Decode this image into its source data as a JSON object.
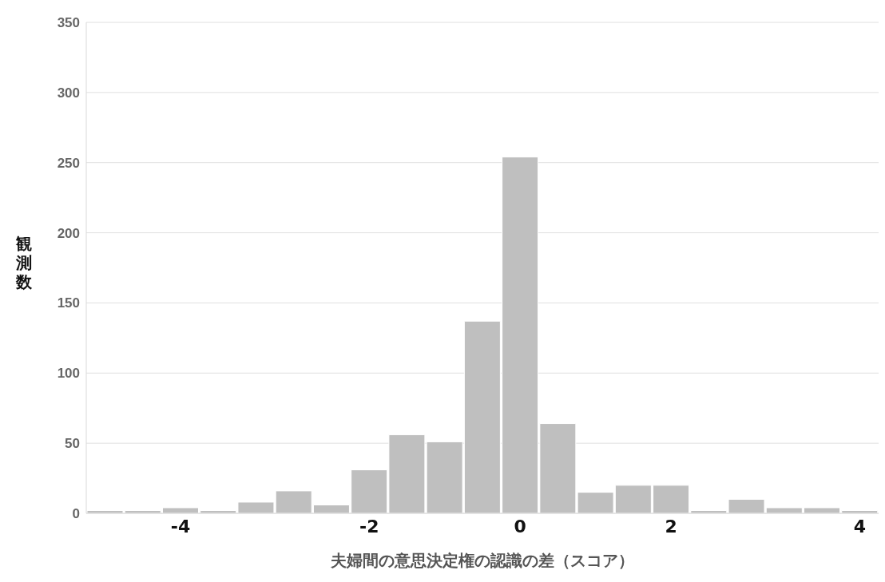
{
  "chart_data": {
    "type": "bar",
    "xlabel": "夫婦間の意思決定権の認識の差（スコア）",
    "ylabel": "観測数",
    "categories": [
      null,
      null,
      "-4",
      null,
      null,
      null,
      null,
      "-2",
      null,
      null,
      null,
      "0",
      null,
      null,
      null,
      "2",
      null,
      null,
      null,
      null,
      "4"
    ],
    "values": [
      2,
      2,
      4,
      2,
      8,
      16,
      6,
      31,
      56,
      51,
      137,
      254,
      64,
      15,
      20,
      20,
      2,
      10,
      4,
      4,
      2
    ],
    "color": "#bfbfbf",
    "ylim": [
      0,
      350
    ],
    "yticks": [
      0,
      50,
      100,
      150,
      200,
      250,
      300,
      350
    ],
    "grid": "y"
  }
}
